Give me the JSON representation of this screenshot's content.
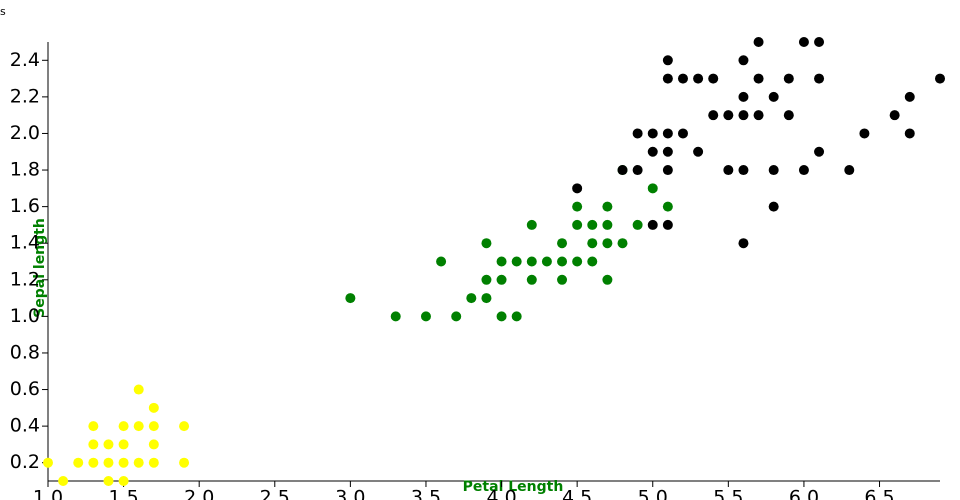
{
  "chart_data": {
    "type": "scatter",
    "title": "s",
    "x_label": "Petal Length",
    "y_label": "Sepal length",
    "xlim": [
      1.0,
      6.9
    ],
    "ylim": [
      0.1,
      2.5
    ],
    "xticks": [
      {
        "value": 1,
        "label": "1.0"
      },
      1.5,
      {
        "value": 2,
        "label": "2.0"
      },
      2.5,
      {
        "value": 3,
        "label": "3.0"
      },
      3.5,
      {
        "value": 4,
        "label": "4.0"
      },
      4.5,
      {
        "value": 5,
        "label": "5.0"
      },
      5.5,
      {
        "value": 6,
        "label": "6.0"
      },
      6.5
    ],
    "yticks": [
      0.2,
      0.4,
      0.6,
      0.8,
      {
        "value": 1,
        "label": "1.0"
      },
      1.2,
      1.4,
      1.6,
      1.8,
      {
        "value": 2,
        "label": "2.0"
      },
      2.2,
      2.4
    ],
    "series": [
      {
        "color": "#ffff00",
        "x": [
          1.4,
          1.3,
          1.5,
          1.7,
          1.4,
          1.5,
          1.6,
          1.4,
          1.1,
          1.2,
          1.5,
          1.3,
          1.7,
          1.5,
          1.7,
          1.0,
          1.7,
          1.9,
          1.6,
          1.3,
          1.6,
          1.9
        ],
        "values": [
          0.2,
          0.2,
          0.2,
          0.4,
          0.3,
          0.1,
          0.2,
          0.1,
          0.1,
          0.2,
          0.4,
          0.4,
          0.3,
          0.3,
          0.2,
          0.2,
          0.5,
          0.2,
          0.4,
          0.3,
          0.6,
          0.4
        ]
      },
      {
        "color": "#008000",
        "x": [
          4.7,
          4.5,
          4.9,
          4.0,
          4.6,
          4.5,
          4.7,
          3.3,
          4.6,
          3.9,
          3.5,
          4.2,
          4.0,
          3.6,
          4.4,
          4.1,
          3.9,
          4.8,
          4.7,
          4.3,
          4.8,
          5.0,
          3.8,
          3.7,
          3.9,
          5.1,
          4.5,
          4.7,
          4.4,
          4.1,
          4.4,
          4.6,
          4.0,
          4.2,
          4.2,
          3.0
        ],
        "values": [
          1.4,
          1.5,
          1.5,
          1.3,
          1.5,
          1.3,
          1.6,
          1.0,
          1.3,
          1.4,
          1.0,
          1.5,
          1.0,
          1.3,
          1.4,
          1.0,
          1.1,
          1.8,
          1.2,
          1.3,
          1.4,
          1.7,
          1.1,
          1.0,
          1.2,
          1.6,
          1.6,
          1.5,
          1.3,
          1.3,
          1.2,
          1.4,
          1.2,
          1.3,
          1.2,
          1.1
        ]
      },
      {
        "color": "#000000",
        "x": [
          6.0,
          5.1,
          5.9,
          5.6,
          5.8,
          6.6,
          4.5,
          6.3,
          5.8,
          6.1,
          5.1,
          5.3,
          5.5,
          5.0,
          5.1,
          5.3,
          5.5,
          6.7,
          6.9,
          5.0,
          5.7,
          4.9,
          6.7,
          4.9,
          5.7,
          6.0,
          4.8,
          5.6,
          5.8,
          6.1,
          6.4,
          5.6,
          5.1,
          5.6,
          6.1,
          5.6,
          5.4,
          5.1,
          5.9,
          5.7,
          5.2,
          5.0,
          5.2,
          5.4,
          5.1
        ],
        "values": [
          2.5,
          1.9,
          2.1,
          1.8,
          2.2,
          2.1,
          1.7,
          1.8,
          1.8,
          2.5,
          2.0,
          1.9,
          2.1,
          2.0,
          2.4,
          2.3,
          1.8,
          2.2,
          2.3,
          1.5,
          2.3,
          2.0,
          2.0,
          1.8,
          2.1,
          1.8,
          1.8,
          2.1,
          1.6,
          1.9,
          2.0,
          2.2,
          1.5,
          1.4,
          2.3,
          2.4,
          2.1,
          2.3,
          2.3,
          2.5,
          2.3,
          1.9,
          2.0,
          2.3,
          1.8
        ]
      }
    ]
  }
}
